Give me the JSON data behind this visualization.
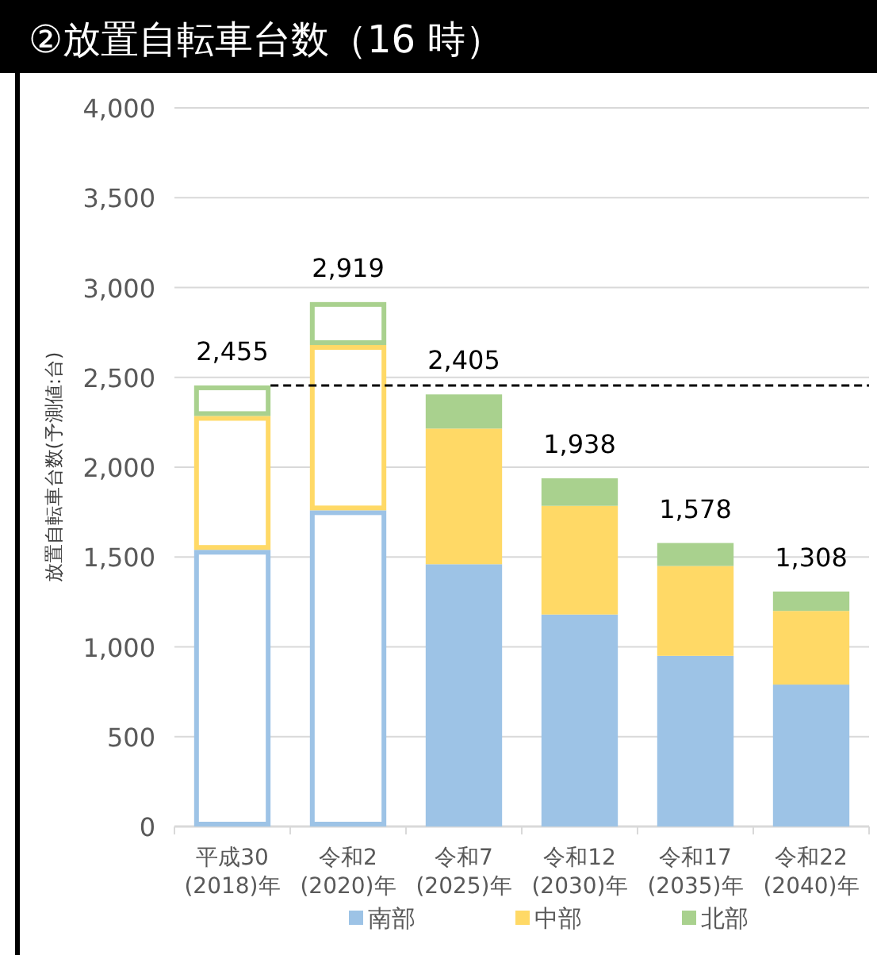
{
  "chart_data": {
    "type": "bar",
    "stacked": true,
    "title": "②放置自転車台数（16 時）",
    "ylabel": "放置自転車台数(予測値:台)",
    "categories": [
      "平成30\n(2018)年",
      "令和2\n(2020)年",
      "令和7\n(2025)年",
      "令和12\n(2030)年",
      "令和17\n(2035)年",
      "令和22\n(2040)年"
    ],
    "series": [
      {
        "name": "南部",
        "color": "#9dc3e6",
        "colors": [
          "#ffffff",
          "#ffffff",
          "#9dc3e6",
          "#9dc3e6",
          "#9dc3e6",
          "#9dc3e6"
        ],
        "values": [
          1540,
          1760,
          1460,
          1180,
          950,
          790
        ]
      },
      {
        "name": "中部",
        "color": "#ffd966",
        "colors": [
          "#ffffff",
          "#ffffff",
          "#ffd966",
          "#ffd966",
          "#ffd966",
          "#ffd966"
        ],
        "values": [
          745,
          920,
          755,
          605,
          500,
          410
        ]
      },
      {
        "name": "北部",
        "color": "#a9d18e",
        "colors": [
          "#ffffff",
          "#ffffff",
          "#a9d18e",
          "#a9d18e",
          "#a9d18e",
          "#a9d18e"
        ],
        "values": [
          170,
          239,
          190,
          153,
          128,
          108
        ]
      }
    ],
    "totals": [
      "2,455",
      "2,919",
      "2,405",
      "1,938",
      "1,578",
      "1,308"
    ],
    "ylim": [
      0,
      4000
    ],
    "yticks": [
      {
        "value": 0,
        "label": "0"
      },
      {
        "value": 500,
        "label": "500"
      },
      {
        "value": 1000,
        "label": "1,000"
      },
      {
        "value": 1500,
        "label": "1,500"
      },
      {
        "value": 2000,
        "label": "2,000"
      },
      {
        "value": 2500,
        "label": "2,500"
      },
      {
        "value": 3000,
        "label": "3,000"
      },
      {
        "value": 3500,
        "label": "3,500"
      },
      {
        "value": 4000,
        "label": "4,000"
      }
    ],
    "ref_lines": [
      {
        "axis": "y",
        "value": 2455,
        "color": "#000000",
        "line_style": "dashed"
      }
    ],
    "grid": "y",
    "legend": "bottom"
  }
}
